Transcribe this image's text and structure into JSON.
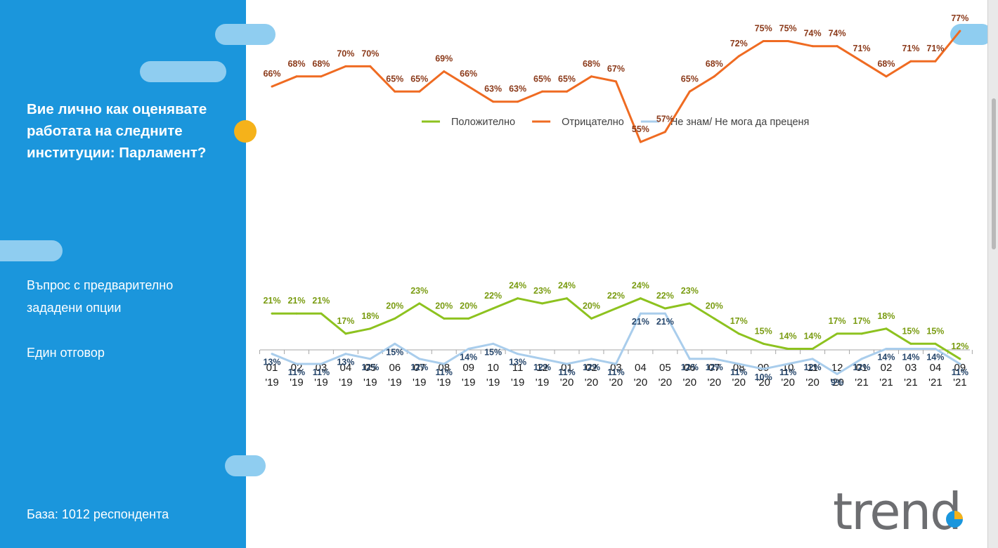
{
  "sidebar": {
    "question": "Вие лично как оценявате работата на следните институции:  Парламент?",
    "note_options": "Въпрос с предварително зададени опции",
    "note_single": "Един отговор",
    "base": "База:  1012 респондента"
  },
  "colors": {
    "sidebar": "#1b96dc",
    "accent_dot": "#f5b21a",
    "positive": "#8dc21f",
    "negative": "#ef6b22",
    "dont_know": "#a9cdec",
    "positive_label": "#7a9c12",
    "negative_label": "#8b3a1a",
    "dont_know_label": "#26466b"
  },
  "logo": {
    "text": "trend",
    "icon": "pie-chart-icon"
  },
  "chart_data": {
    "type": "line",
    "categories": [
      "01 '19",
      "02 '19",
      "03 '19",
      "04 '19",
      "05 '19",
      "06 '19",
      "07 '19",
      "08 '19",
      "09 '19",
      "10 '19",
      "11 '19",
      "12 '19",
      "01 '20",
      "02 '20",
      "03 '20",
      "04 '20",
      "05 '20",
      "06 '20",
      "07 '20",
      "08 '20",
      "09 '20",
      "10 '20",
      "11 '20",
      "12 '20",
      "01 '21",
      "02 '21",
      "03 '21",
      "04 '21",
      "09 '21"
    ],
    "series": [
      {
        "name": "Положително",
        "color": "#8dc21f",
        "label_color": "#7a9c12",
        "values": [
          21,
          21,
          21,
          17,
          18,
          20,
          23,
          20,
          20,
          22,
          24,
          23,
          24,
          20,
          22,
          24,
          22,
          23,
          20,
          17,
          15,
          14,
          14,
          17,
          17,
          18,
          15,
          15,
          12
        ]
      },
      {
        "name": "Отрицателно",
        "color": "#ef6b22",
        "label_color": "#8b3a1a",
        "values": [
          66,
          68,
          68,
          70,
          70,
          65,
          65,
          69,
          66,
          63,
          63,
          65,
          65,
          68,
          67,
          55,
          57,
          65,
          68,
          72,
          75,
          75,
          74,
          74,
          71,
          68,
          71,
          71,
          77
        ]
      },
      {
        "name": "Не знам/ Не мога да преценя",
        "color": "#a9cdec",
        "label_color": "#26466b",
        "values": [
          13,
          11,
          11,
          13,
          12,
          15,
          12,
          11,
          14,
          15,
          13,
          12,
          11,
          12,
          11,
          21,
          21,
          12,
          12,
          11,
          10,
          11,
          12,
          9,
          12,
          14,
          14,
          14,
          11
        ]
      }
    ],
    "value_suffix": "%",
    "legend_position": "top",
    "grid": false
  }
}
